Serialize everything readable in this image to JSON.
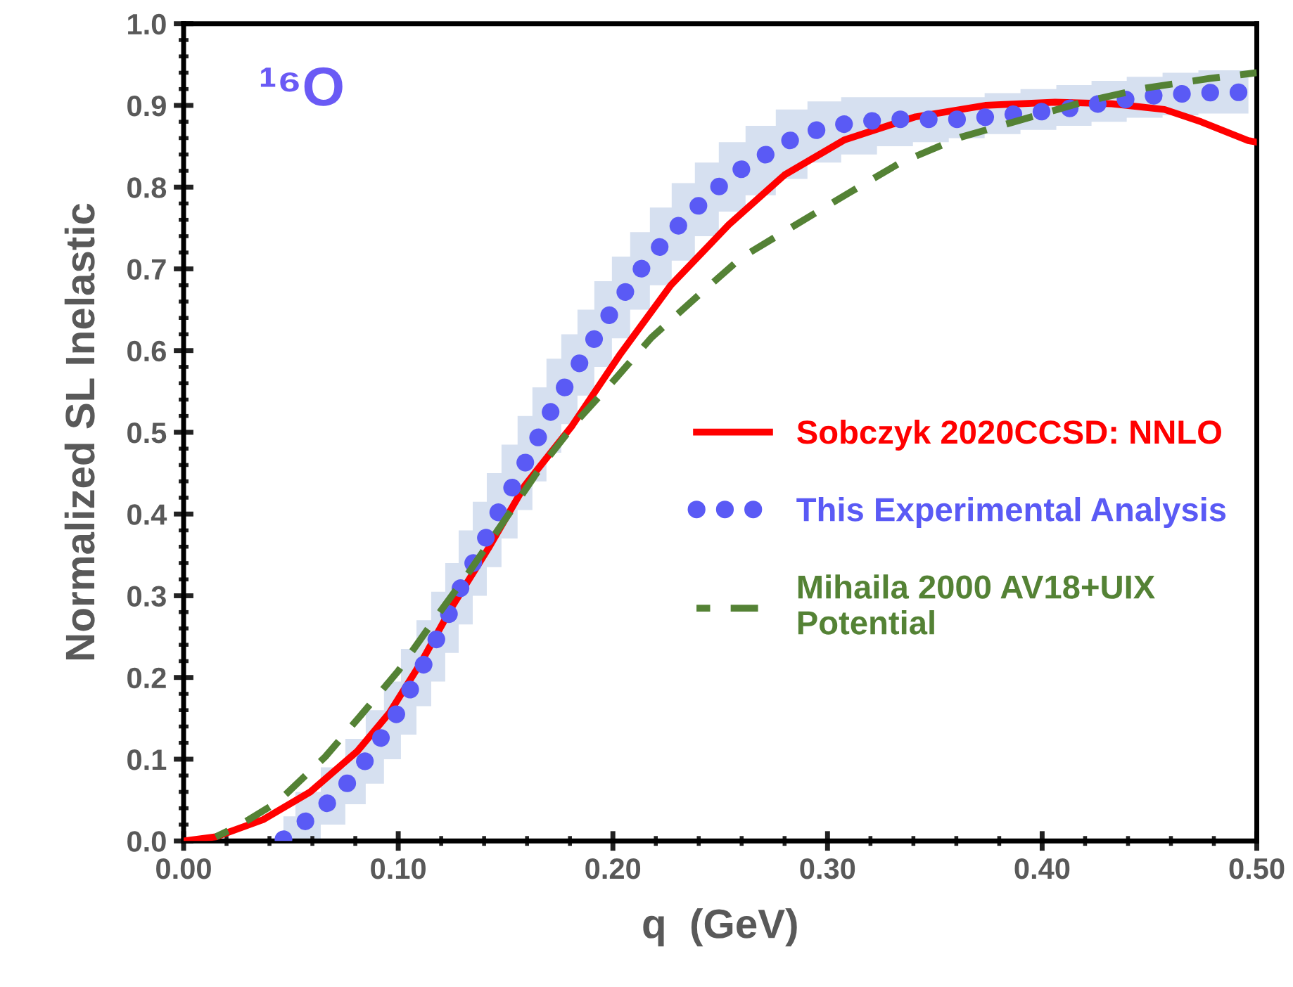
{
  "chart_data": {
    "type": "line",
    "xlabel": "q  (GeV)",
    "ylabel": "Normalized SL Inelastic",
    "annotations": [
      "¹⁶O"
    ],
    "xlim": [
      0,
      0.5
    ],
    "ylim": [
      0,
      1.0
    ],
    "xticks": [
      {
        "value": 0,
        "label": "0.00"
      },
      {
        "value": 0.1,
        "label": "0.10"
      },
      {
        "value": 0.2,
        "label": "0.20"
      },
      {
        "value": 0.3,
        "label": "0.30"
      },
      {
        "value": 0.4,
        "label": "0.40"
      },
      {
        "value": 0.5,
        "label": "0.50"
      }
    ],
    "yticks": [
      {
        "value": 0,
        "label": "0.0"
      },
      {
        "value": 0.1,
        "label": "0.1"
      },
      {
        "value": 0.2,
        "label": "0.2"
      },
      {
        "value": 0.3,
        "label": "0.3"
      },
      {
        "value": 0.4,
        "label": "0.4"
      },
      {
        "value": 0.5,
        "label": "0.5"
      },
      {
        "value": 0.6,
        "label": "0.6"
      },
      {
        "value": 0.7,
        "label": "0.7"
      },
      {
        "value": 0.8,
        "label": "0.8"
      },
      {
        "value": 0.9,
        "label": "0.9"
      },
      {
        "value": 1.0,
        "label": "1.0"
      }
    ],
    "grid": false,
    "legend": "right",
    "series": [
      {
        "name": "Sobczyk 2020CCSD: NNLO",
        "color": "#ff0000",
        "line_style": "solid",
        "x": [
          0,
          0.015,
          0.037,
          0.059,
          0.081,
          0.096,
          0.111,
          0.1245,
          0.142,
          0.159,
          0.181,
          0.203,
          0.227,
          0.254,
          0.28,
          0.308,
          0.341,
          0.3735,
          0.406,
          0.4325,
          0.457,
          0.474,
          0.496,
          0.5
        ],
        "values": [
          0,
          0.005,
          0.026,
          0.06,
          0.11,
          0.157,
          0.22,
          0.284,
          0.358,
          0.435,
          0.508,
          0.594,
          0.68,
          0.754,
          0.815,
          0.858,
          0.886,
          0.9,
          0.904,
          0.902,
          0.895,
          0.88,
          0.857,
          0.855
        ]
      },
      {
        "name": "This Experimental Analysis",
        "color": "#5a5af5",
        "line_style": "dotted",
        "x": [
          0.0465,
          0.0577,
          0.0701,
          0.0806,
          0.0891,
          0.0976,
          0.1049,
          0.1121,
          0.1186,
          0.1252,
          0.1311,
          0.1383,
          0.1442,
          0.152,
          0.1592,
          0.1658,
          0.1723,
          0.1796,
          0.1874,
          0.1953,
          0.2038,
          0.2123,
          0.2222,
          0.2326,
          0.2438,
          0.2549,
          0.2687,
          0.2831,
          0.2982,
          0.3145,
          0.3316,
          0.348,
          0.365,
          0.3814,
          0.3984,
          0.4148,
          0.4312,
          0.4476,
          0.4646,
          0.481,
          0.4961
        ],
        "values": [
          0.002,
          0.026,
          0.053,
          0.083,
          0.115,
          0.148,
          0.182,
          0.217,
          0.251,
          0.286,
          0.322,
          0.356,
          0.391,
          0.427,
          0.463,
          0.497,
          0.532,
          0.564,
          0.597,
          0.632,
          0.664,
          0.697,
          0.728,
          0.759,
          0.787,
          0.814,
          0.836,
          0.858,
          0.873,
          0.88,
          0.883,
          0.883,
          0.883,
          0.888,
          0.892,
          0.897,
          0.904,
          0.911,
          0.914,
          0.916,
          0.916
        ],
        "lower": [
          0,
          0,
          0.02,
          0.045,
          0.07,
          0.1,
          0.13,
          0.165,
          0.195,
          0.23,
          0.265,
          0.3,
          0.335,
          0.37,
          0.405,
          0.44,
          0.475,
          0.51,
          0.545,
          0.58,
          0.615,
          0.65,
          0.68,
          0.71,
          0.74,
          0.77,
          0.79,
          0.81,
          0.83,
          0.84,
          0.85,
          0.855,
          0.86,
          0.865,
          0.87,
          0.875,
          0.88,
          0.885,
          0.888,
          0.89,
          0.89
        ],
        "upper": [
          0.03,
          0.06,
          0.09,
          0.125,
          0.16,
          0.195,
          0.235,
          0.27,
          0.305,
          0.34,
          0.38,
          0.415,
          0.45,
          0.485,
          0.52,
          0.555,
          0.59,
          0.62,
          0.65,
          0.685,
          0.715,
          0.745,
          0.775,
          0.805,
          0.83,
          0.855,
          0.875,
          0.895,
          0.905,
          0.91,
          0.91,
          0.91,
          0.91,
          0.915,
          0.92,
          0.925,
          0.93,
          0.935,
          0.94,
          0.943,
          0.943
        ]
      },
      {
        "name": "Mihaila 2000 AV18+UIX\nPotential",
        "color": "#548235",
        "line_style": "dashed",
        "x": [
          0.015,
          0.026,
          0.044,
          0.066,
          0.083,
          0.1,
          0.118,
          0.133,
          0.151,
          0.166,
          0.183,
          0.201,
          0.218,
          0.24,
          0.26,
          0.284,
          0.31,
          0.334,
          0.362,
          0.391,
          0.419,
          0.4476,
          0.478,
          0.5
        ],
        "values": [
          0.005,
          0.019,
          0.048,
          0.103,
          0.155,
          0.208,
          0.275,
          0.329,
          0.398,
          0.456,
          0.513,
          0.565,
          0.616,
          0.668,
          0.714,
          0.752,
          0.793,
          0.83,
          0.861,
          0.883,
          0.904,
          0.921,
          0.933,
          0.94
        ]
      }
    ]
  }
}
